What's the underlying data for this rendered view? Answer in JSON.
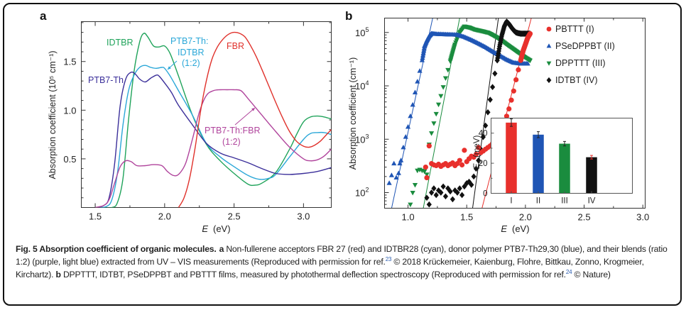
{
  "figure": {
    "panel_a_label": "a",
    "panel_b_label": "b"
  },
  "chart_data": [
    {
      "type": "line",
      "panel": "a",
      "title": "",
      "xlabel_var": "E",
      "xlabel_unit": "(eV)",
      "ylabel": "Absorption coefficient (10⁵ cm⁻¹)",
      "xlim": [
        1.4,
        3.2
      ],
      "ylim": [
        0,
        1.91
      ],
      "xticks": [
        1.5,
        2.0,
        2.5,
        3.0
      ],
      "xtick_labels": [
        "1.5",
        "2.0",
        "2.5",
        "3.0"
      ],
      "yticks": [
        0.5,
        1.0,
        1.5
      ],
      "ytick_labels": [
        "0.5",
        "1.0",
        "1.5"
      ],
      "grid": false,
      "series": [
        {
          "name": "IDTBR",
          "color": "#1fa35a",
          "x": [
            1.55,
            1.62,
            1.66,
            1.7,
            1.74,
            1.78,
            1.82,
            1.85,
            1.88,
            1.92,
            1.96,
            2.0,
            2.04,
            2.1,
            2.2,
            2.3,
            2.4,
            2.5,
            2.6,
            2.65,
            2.7,
            2.8,
            2.9,
            2.95,
            3.0,
            3.05,
            3.1,
            3.15,
            3.2
          ],
          "y": [
            0.0,
            0.0,
            0.05,
            0.3,
            0.9,
            1.4,
            1.7,
            1.79,
            1.75,
            1.66,
            1.65,
            1.66,
            1.58,
            1.35,
            0.95,
            0.65,
            0.48,
            0.35,
            0.24,
            0.23,
            0.25,
            0.36,
            0.6,
            0.75,
            0.88,
            0.93,
            0.94,
            0.93,
            0.91
          ]
        },
        {
          "name": "PTB7-Th:IDTBR (1:2)",
          "color": "#2aa7d8",
          "x": [
            1.52,
            1.58,
            1.62,
            1.66,
            1.7,
            1.74,
            1.78,
            1.82,
            1.86,
            1.9,
            1.94,
            1.98,
            2.0,
            2.04,
            2.1,
            2.2,
            2.3,
            2.4,
            2.5,
            2.6,
            2.68,
            2.75,
            2.8,
            2.9,
            3.0,
            3.05,
            3.1,
            3.15,
            3.2
          ],
          "y": [
            0.0,
            0.01,
            0.08,
            0.35,
            0.85,
            1.2,
            1.36,
            1.44,
            1.46,
            1.44,
            1.43,
            1.44,
            1.43,
            1.35,
            1.2,
            0.95,
            0.66,
            0.52,
            0.42,
            0.33,
            0.29,
            0.3,
            0.34,
            0.52,
            0.7,
            0.76,
            0.77,
            0.77,
            0.75
          ]
        },
        {
          "name": "PTB7-Th",
          "color": "#3b2f9a",
          "x": [
            1.5,
            1.56,
            1.6,
            1.64,
            1.68,
            1.72,
            1.76,
            1.79,
            1.82,
            1.86,
            1.9,
            1.94,
            1.96,
            2.0,
            2.05,
            2.1,
            2.2,
            2.3,
            2.4,
            2.5,
            2.6,
            2.7,
            2.8,
            2.9,
            3.0,
            3.1,
            3.2
          ],
          "y": [
            0.0,
            0.02,
            0.1,
            0.45,
            1.05,
            1.32,
            1.39,
            1.37,
            1.32,
            1.29,
            1.33,
            1.36,
            1.35,
            1.28,
            1.18,
            1.05,
            0.85,
            0.66,
            0.56,
            0.51,
            0.46,
            0.4,
            0.35,
            0.34,
            0.35,
            0.37,
            0.41
          ]
        },
        {
          "name": "PTB7-Th:FBR (1:2)",
          "color": "#b0449c",
          "x": [
            1.5,
            1.56,
            1.6,
            1.64,
            1.68,
            1.72,
            1.76,
            1.8,
            1.86,
            1.92,
            1.98,
            2.02,
            2.06,
            2.1,
            2.15,
            2.2,
            2.25,
            2.3,
            2.35,
            2.4,
            2.45,
            2.5,
            2.55,
            2.6,
            2.7,
            2.8,
            2.9,
            3.0,
            3.05,
            3.1,
            3.15,
            3.2
          ],
          "y": [
            0.0,
            0.02,
            0.08,
            0.25,
            0.42,
            0.48,
            0.47,
            0.43,
            0.43,
            0.44,
            0.43,
            0.37,
            0.33,
            0.34,
            0.45,
            0.7,
            0.98,
            1.15,
            1.2,
            1.21,
            1.21,
            1.21,
            1.2,
            1.12,
            0.95,
            0.78,
            0.62,
            0.5,
            0.48,
            0.49,
            0.53,
            0.6
          ]
        },
        {
          "name": "FBR",
          "color": "#e0312b",
          "x": [
            2.1,
            2.14,
            2.18,
            2.22,
            2.26,
            2.3,
            2.34,
            2.38,
            2.42,
            2.46,
            2.5,
            2.54,
            2.58,
            2.62,
            2.66,
            2.7,
            2.75,
            2.8,
            2.85,
            2.9,
            2.95,
            3.0,
            3.04,
            3.08,
            3.12,
            3.16,
            3.2
          ],
          "y": [
            0.0,
            0.1,
            0.3,
            0.62,
            1.0,
            1.3,
            1.52,
            1.65,
            1.73,
            1.78,
            1.8,
            1.79,
            1.75,
            1.66,
            1.55,
            1.42,
            1.25,
            1.08,
            0.92,
            0.78,
            0.68,
            0.63,
            0.62,
            0.64,
            0.68,
            0.74,
            0.8
          ]
        }
      ],
      "annotations": [
        {
          "text": "IDTBR",
          "color": "#1fa35a"
        },
        {
          "text": "PTB7-Th:",
          "color": "#2aa7d8"
        },
        {
          "text": "IDTBR",
          "color": "#2aa7d8"
        },
        {
          "text": "(1:2)",
          "color": "#2aa7d8"
        },
        {
          "text": "PTB7-Th",
          "color": "#3b2f9a"
        },
        {
          "text": "FBR",
          "color": "#e0312b"
        },
        {
          "text": "PTB7-Th:FBR",
          "color": "#b0449c"
        },
        {
          "text": "(1:2)",
          "color": "#b0449c"
        }
      ]
    },
    {
      "type": "scatter",
      "panel": "b",
      "title": "",
      "xlabel_var": "E",
      "xlabel_unit": "(eV)",
      "ylabel": "Absorption coefficient (cm⁻¹)",
      "xscale": "linear",
      "yscale": "log",
      "xlim": [
        0.8,
        3.02
      ],
      "ylim": [
        51,
        186000
      ],
      "xticks": [
        1.0,
        1.5,
        2.0,
        2.5,
        3.0
      ],
      "xtick_labels": [
        "1.0",
        "1.5",
        "2.0",
        "2.5",
        "3.0"
      ],
      "yticks": [
        100,
        1000,
        10000,
        100000
      ],
      "ytick_base": "10",
      "ytick_exponents": [
        "2",
        "3",
        "4",
        "5"
      ],
      "grid": false,
      "legend_position": "top-right",
      "series": [
        {
          "name": "PBTTT (I)",
          "color": "#e8302c",
          "marker": "circle",
          "x": [
            1.15,
            1.16,
            1.18,
            1.2,
            1.22,
            1.24,
            1.26,
            1.28,
            1.3,
            1.32,
            1.34,
            1.36,
            1.38,
            1.4,
            1.42,
            1.44,
            1.46,
            1.48,
            1.5,
            1.52,
            1.54,
            1.56,
            1.58,
            1.6,
            1.62,
            1.64,
            1.66,
            1.68,
            1.7,
            1.72,
            1.74,
            1.76,
            1.78,
            1.8,
            1.82,
            1.84,
            1.86,
            1.88,
            1.9,
            1.92,
            1.94,
            1.96,
            1.98,
            2.0,
            2.02,
            2.04
          ],
          "y": [
            300,
            190,
            750,
            350,
            330,
            320,
            340,
            310,
            330,
            350,
            320,
            340,
            360,
            320,
            350,
            400,
            330,
            620,
            380,
            430,
            480,
            460,
            520,
            700,
            560,
            600,
            650,
            700,
            750,
            830,
            900,
            1100,
            1300,
            1600,
            2000,
            2700,
            3700,
            5400,
            8000,
            13000,
            20000,
            30000,
            45000,
            60000,
            80000,
            95000
          ],
          "fit_line": {
            "x": [
              1.63,
              2.05
            ],
            "y": [
              51,
              186000
            ]
          }
        },
        {
          "name": "PSeDPPBT (II)",
          "color": "#1f55b5",
          "marker": "triangle-up",
          "x": [
            0.84,
            0.86,
            0.88,
            0.9,
            0.92,
            0.93,
            0.94,
            0.96,
            0.98,
            1.0,
            1.02,
            1.04,
            1.06,
            1.08,
            1.1,
            1.12,
            1.14,
            1.16,
            1.18,
            1.2,
            1.24,
            1.3,
            1.36,
            1.42,
            1.48,
            1.54,
            1.6,
            1.66,
            1.72,
            1.78,
            1.84,
            1.9,
            1.96,
            2.02
          ],
          "y": [
            150,
            210,
            350,
            190,
            230,
            350,
            400,
            700,
            1100,
            1700,
            2700,
            4400,
            7500,
            12000,
            19000,
            30000,
            55000,
            70000,
            85000,
            95000,
            93000,
            92000,
            91000,
            90000,
            82000,
            72000,
            62000,
            53000,
            44000,
            37000,
            31000,
            27000,
            26000,
            26000
          ],
          "fit_line": {
            "x": [
              0.86,
              1.21
            ],
            "y": [
              51,
              186000
            ]
          }
        },
        {
          "name": "DPPTTT (III)",
          "color": "#1a8c3e",
          "marker": "triangle-down",
          "x": [
            1.02,
            1.04,
            1.06,
            1.08,
            1.1,
            1.12,
            1.14,
            1.16,
            1.18,
            1.2,
            1.22,
            1.24,
            1.26,
            1.28,
            1.3,
            1.32,
            1.34,
            1.36,
            1.38,
            1.4,
            1.44,
            1.48,
            1.52,
            1.56,
            1.6,
            1.64,
            1.68,
            1.72,
            1.76,
            1.8,
            1.84,
            1.88,
            1.92,
            1.96,
            2.0,
            2.04
          ],
          "y": [
            60,
            100,
            140,
            260,
            270,
            260,
            250,
            220,
            800,
            1300,
            2000,
            3000,
            4500,
            6500,
            9500,
            14000,
            20000,
            29000,
            42000,
            60000,
            100000,
            130000,
            125000,
            115000,
            110000,
            105000,
            100000,
            90000,
            80000,
            70000,
            60000,
            52000,
            45000,
            39000,
            34000,
            30000
          ],
          "fit_line": {
            "x": [
              1.13,
              1.44
            ],
            "y": [
              51,
              186000
            ]
          }
        },
        {
          "name": "IDTBT (IV)",
          "color": "#111111",
          "marker": "diamond",
          "x": [
            1.16,
            1.18,
            1.2,
            1.22,
            1.24,
            1.26,
            1.28,
            1.3,
            1.32,
            1.34,
            1.36,
            1.38,
            1.4,
            1.42,
            1.44,
            1.46,
            1.48,
            1.5,
            1.52,
            1.54,
            1.56,
            1.58,
            1.6,
            1.62,
            1.64,
            1.66,
            1.68,
            1.7,
            1.72,
            1.74,
            1.76,
            1.78,
            1.8,
            1.82,
            1.84,
            1.86,
            1.88,
            1.9,
            1.92,
            1.94,
            1.96,
            1.98,
            2.0,
            2.02,
            2.04
          ],
          "y": [
            80,
            60,
            100,
            120,
            90,
            110,
            100,
            130,
            85,
            120,
            105,
            75,
            110,
            100,
            120,
            90,
            130,
            150,
            160,
            140,
            200,
            280,
            400,
            650,
            1100,
            1800,
            3200,
            5500,
            9500,
            17000,
            30000,
            55000,
            90000,
            130000,
            160000,
            145000,
            125000,
            110000,
            100000,
            97000,
            95000,
            95000,
            95000,
            95000,
            95000
          ],
          "fit_line": {
            "x": [
              1.55,
              1.77
            ],
            "y": [
              51,
              186000
            ]
          }
        }
      ]
    },
    {
      "type": "bar",
      "panel": "b-inset",
      "title": "",
      "xlabel": "",
      "ylabel_var": "E",
      "ylabel_sub": "u",
      "ylabel_unit": "(meV)",
      "categories": [
        "I",
        "II",
        "III",
        "IV"
      ],
      "values": [
        47,
        39,
        33,
        24
      ],
      "errors": [
        2.5,
        2.0,
        1.5,
        1.2
      ],
      "colors": [
        "#e8302c",
        "#1f55b5",
        "#1a8c3e",
        "#111111"
      ],
      "error_colors": [
        "#222222",
        "#222222",
        "#222222",
        "#e8302c"
      ],
      "ylim": [
        0,
        50
      ],
      "yticks": [
        0,
        20,
        40
      ],
      "ytick_labels": [
        "0",
        "20",
        "40"
      ]
    }
  ],
  "caption": {
    "fig_label": "Fig. 5 Absorption coefficient of organic molecules.",
    "a_label": "a",
    "a_text_1": " Non-fullerene acceptors FBR 27 (red) and IDTBR28 (cyan), donor polymer PTB7-Th29,30 (blue), and their blends (ratio 1:2) (purple, light blue) extracted from UV – VIS measurements (Reproduced with permission for ref.",
    "ref_23": "23",
    "a_text_2": " © 2018 Krückemeier, Kaienburg, Flohre, Bittkau, Zonno, Krogmeier, Kirchartz). ",
    "b_label": "b",
    "b_text_1": " DPPTTT, IDTBT, PSeDPPBT and PBTTT films, measured by photothermal deflection spectroscopy (Reproduced with permission for ref.",
    "ref_24": "24",
    "b_text_2": " © Nature)"
  }
}
